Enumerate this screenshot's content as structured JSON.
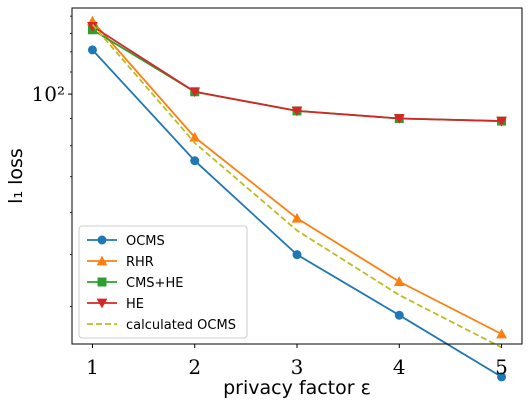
{
  "chart_data": {
    "type": "line",
    "xlabel": "privacy factor ε",
    "ylabel": "l₁ loss",
    "y_scale": "log",
    "xlim": [
      0.8,
      5.2
    ],
    "ylim": [
      34,
      145
    ],
    "x_ticks": [
      "1",
      "2",
      "3",
      "4",
      "5"
    ],
    "y_tick_label": "10²",
    "y_tick_value": 100,
    "grid": false,
    "legend_position": "lower-left",
    "x": [
      1,
      2,
      3,
      4,
      5
    ],
    "series": [
      {
        "name": "OCMS",
        "values": [
          121,
          75,
          50,
          38.5,
          29.5
        ],
        "color": "#1f77b4",
        "marker": "circle",
        "dash": "solid"
      },
      {
        "name": "RHR",
        "values": [
          137,
          83,
          58.5,
          44.5,
          35.5
        ],
        "color": "#ff7f0e",
        "marker": "triangle-up",
        "dash": "solid"
      },
      {
        "name": "CMS+HE",
        "values": [
          132,
          101,
          93,
          90,
          89
        ],
        "color": "#2ca02c",
        "marker": "square",
        "dash": "solid"
      },
      {
        "name": "HE",
        "values": [
          134,
          101,
          93,
          90,
          89
        ],
        "color": "#d62728",
        "marker": "triangle-down",
        "dash": "solid"
      },
      {
        "name": "calculated OCMS",
        "values": [
          135,
          81,
          55.5,
          42,
          33.5
        ],
        "color": "#bcbd22",
        "marker": "none",
        "dash": "dashed"
      }
    ]
  }
}
